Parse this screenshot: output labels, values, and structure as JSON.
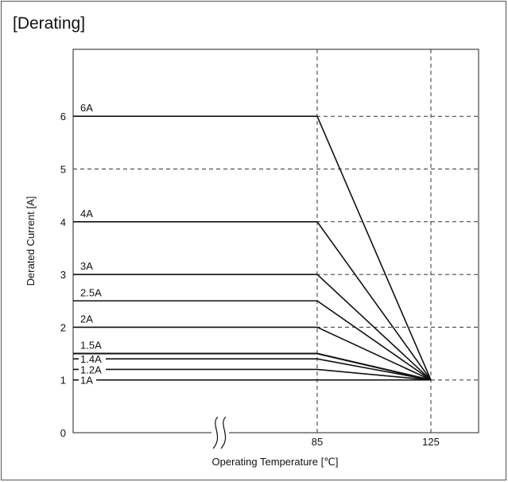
{
  "title": "[Derating]",
  "chart_data": {
    "type": "line",
    "title": "[Derating]",
    "xlabel": "Operating Temperature [℃]",
    "ylabel": "Derated Current [A]",
    "x_ticks": [
      "85",
      "125"
    ],
    "y_ticks": [
      "0",
      "1",
      "2",
      "3",
      "4",
      "5",
      "6"
    ],
    "ylim": [
      0,
      7
    ],
    "x_axis_break": true,
    "grid": "dashed",
    "converge_point": {
      "x": 125,
      "y": 1
    },
    "series": [
      {
        "name": "6A",
        "points": [
          {
            "x": "start",
            "y": 6
          },
          {
            "x": 85,
            "y": 6
          },
          {
            "x": 125,
            "y": 1
          }
        ]
      },
      {
        "name": "4A",
        "points": [
          {
            "x": "start",
            "y": 4
          },
          {
            "x": 85,
            "y": 4
          },
          {
            "x": 125,
            "y": 1
          }
        ]
      },
      {
        "name": "3A",
        "points": [
          {
            "x": "start",
            "y": 3
          },
          {
            "x": 85,
            "y": 3
          },
          {
            "x": 125,
            "y": 1
          }
        ]
      },
      {
        "name": "2.5A",
        "points": [
          {
            "x": "start",
            "y": 2.5
          },
          {
            "x": 85,
            "y": 2.5
          },
          {
            "x": 125,
            "y": 1
          }
        ]
      },
      {
        "name": "2A",
        "points": [
          {
            "x": "start",
            "y": 2
          },
          {
            "x": 85,
            "y": 2
          },
          {
            "x": 125,
            "y": 1
          }
        ]
      },
      {
        "name": "1.5A",
        "points": [
          {
            "x": "start",
            "y": 1.5
          },
          {
            "x": 85,
            "y": 1.5
          },
          {
            "x": 125,
            "y": 1
          }
        ]
      },
      {
        "name": "1.4A",
        "points": [
          {
            "x": "start",
            "y": 1.4
          },
          {
            "x": 85,
            "y": 1.4
          },
          {
            "x": 125,
            "y": 1
          }
        ]
      },
      {
        "name": "1.2A",
        "points": [
          {
            "x": "start",
            "y": 1.2
          },
          {
            "x": 85,
            "y": 1.2
          },
          {
            "x": 125,
            "y": 1
          }
        ]
      },
      {
        "name": "1A",
        "points": [
          {
            "x": "start",
            "y": 1
          },
          {
            "x": 85,
            "y": 1
          },
          {
            "x": 125,
            "y": 1
          }
        ]
      }
    ]
  }
}
